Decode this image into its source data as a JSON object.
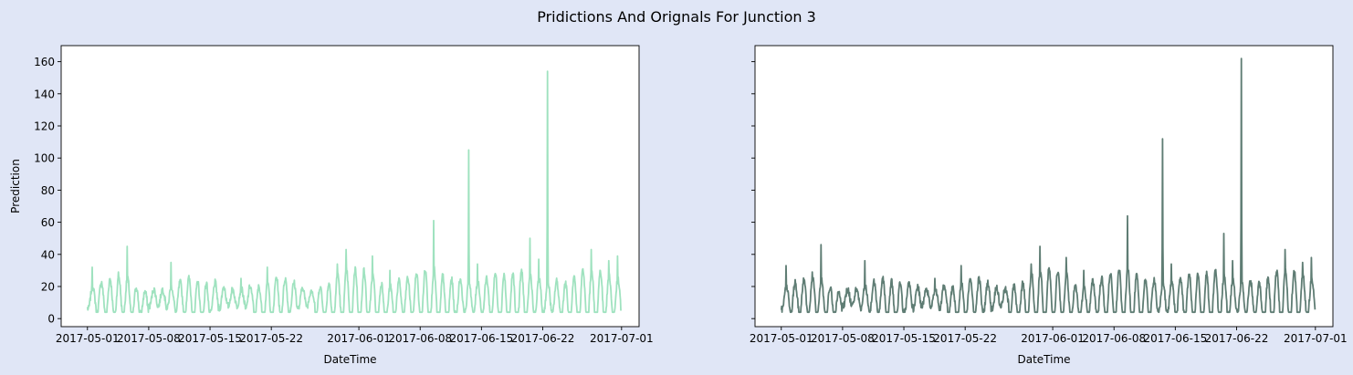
{
  "figure": {
    "title": "Pridictions And Orignals For Junction 3",
    "background": "#e0e6f6"
  },
  "chart_data": [
    {
      "type": "line",
      "panel": "left",
      "xlabel": "DateTime",
      "ylabel": "Prediction",
      "xlim": [
        "2017-04-28",
        "2017-07-03"
      ],
      "ylim": [
        -5,
        170
      ],
      "xticks": [
        "2017-05-01",
        "2017-05-08",
        "2017-05-15",
        "2017-05-22",
        "2017-06-01",
        "2017-06-08",
        "2017-06-15",
        "2017-06-22",
        "2017-07-01"
      ],
      "yticks": [
        0,
        20,
        40,
        60,
        80,
        100,
        120,
        140,
        160
      ],
      "grid": false,
      "series": [
        {
          "color": "#9fe2bf",
          "x_start": "2017-05-01T00:00",
          "x_end": "2017-07-01T00:00",
          "base_profile": "daily cycle between ~5 and ~25 vehicles",
          "peaks": [
            {
              "x": "2017-05-01",
              "y": 32
            },
            {
              "x": "2017-05-04",
              "y": 29
            },
            {
              "x": "2017-05-05",
              "y": 45
            },
            {
              "x": "2017-05-10",
              "y": 35
            },
            {
              "x": "2017-05-13",
              "y": 23
            },
            {
              "x": "2017-05-18",
              "y": 25
            },
            {
              "x": "2017-05-21",
              "y": 32
            },
            {
              "x": "2017-05-29",
              "y": 34
            },
            {
              "x": "2017-05-30",
              "y": 43
            },
            {
              "x": "2017-06-02",
              "y": 39
            },
            {
              "x": "2017-06-04",
              "y": 30
            },
            {
              "x": "2017-06-09",
              "y": 61
            },
            {
              "x": "2017-06-13",
              "y": 105
            },
            {
              "x": "2017-06-14",
              "y": 34
            },
            {
              "x": "2017-06-20",
              "y": 50
            },
            {
              "x": "2017-06-21",
              "y": 37
            },
            {
              "x": "2017-06-22",
              "y": 154
            },
            {
              "x": "2017-06-27",
              "y": 43
            },
            {
              "x": "2017-06-29",
              "y": 36
            },
            {
              "x": "2017-06-30",
              "y": 39
            }
          ]
        }
      ]
    },
    {
      "type": "line",
      "panel": "right",
      "xlabel": "DateTime",
      "ylabel": "",
      "sharey": true,
      "xlim": [
        "2017-04-28",
        "2017-07-03"
      ],
      "ylim": [
        -5,
        170
      ],
      "xticks": [
        "2017-05-01",
        "2017-05-08",
        "2017-05-15",
        "2017-05-22",
        "2017-06-01",
        "2017-06-08",
        "2017-06-15",
        "2017-06-22",
        "2017-07-01"
      ],
      "yticks": [
        0,
        20,
        40,
        60,
        80,
        100,
        120,
        140,
        160
      ],
      "grid": false,
      "series": [
        {
          "color": "#5f7d74",
          "x_start": "2017-05-01T00:00",
          "x_end": "2017-07-01T00:00",
          "base_profile": "daily cycle between ~5 and ~25 vehicles",
          "peaks": [
            {
              "x": "2017-05-01",
              "y": 33
            },
            {
              "x": "2017-05-04",
              "y": 29
            },
            {
              "x": "2017-05-05",
              "y": 46
            },
            {
              "x": "2017-05-10",
              "y": 36
            },
            {
              "x": "2017-05-13",
              "y": 23
            },
            {
              "x": "2017-05-18",
              "y": 25
            },
            {
              "x": "2017-05-21",
              "y": 33
            },
            {
              "x": "2017-05-29",
              "y": 34
            },
            {
              "x": "2017-05-30",
              "y": 45
            },
            {
              "x": "2017-06-02",
              "y": 38
            },
            {
              "x": "2017-06-04",
              "y": 30
            },
            {
              "x": "2017-06-09",
              "y": 64
            },
            {
              "x": "2017-06-13",
              "y": 112
            },
            {
              "x": "2017-06-14",
              "y": 34
            },
            {
              "x": "2017-06-20",
              "y": 53
            },
            {
              "x": "2017-06-21",
              "y": 36
            },
            {
              "x": "2017-06-22",
              "y": 162
            },
            {
              "x": "2017-06-27",
              "y": 43
            },
            {
              "x": "2017-06-29",
              "y": 35
            },
            {
              "x": "2017-06-30",
              "y": 38
            }
          ]
        }
      ]
    }
  ]
}
